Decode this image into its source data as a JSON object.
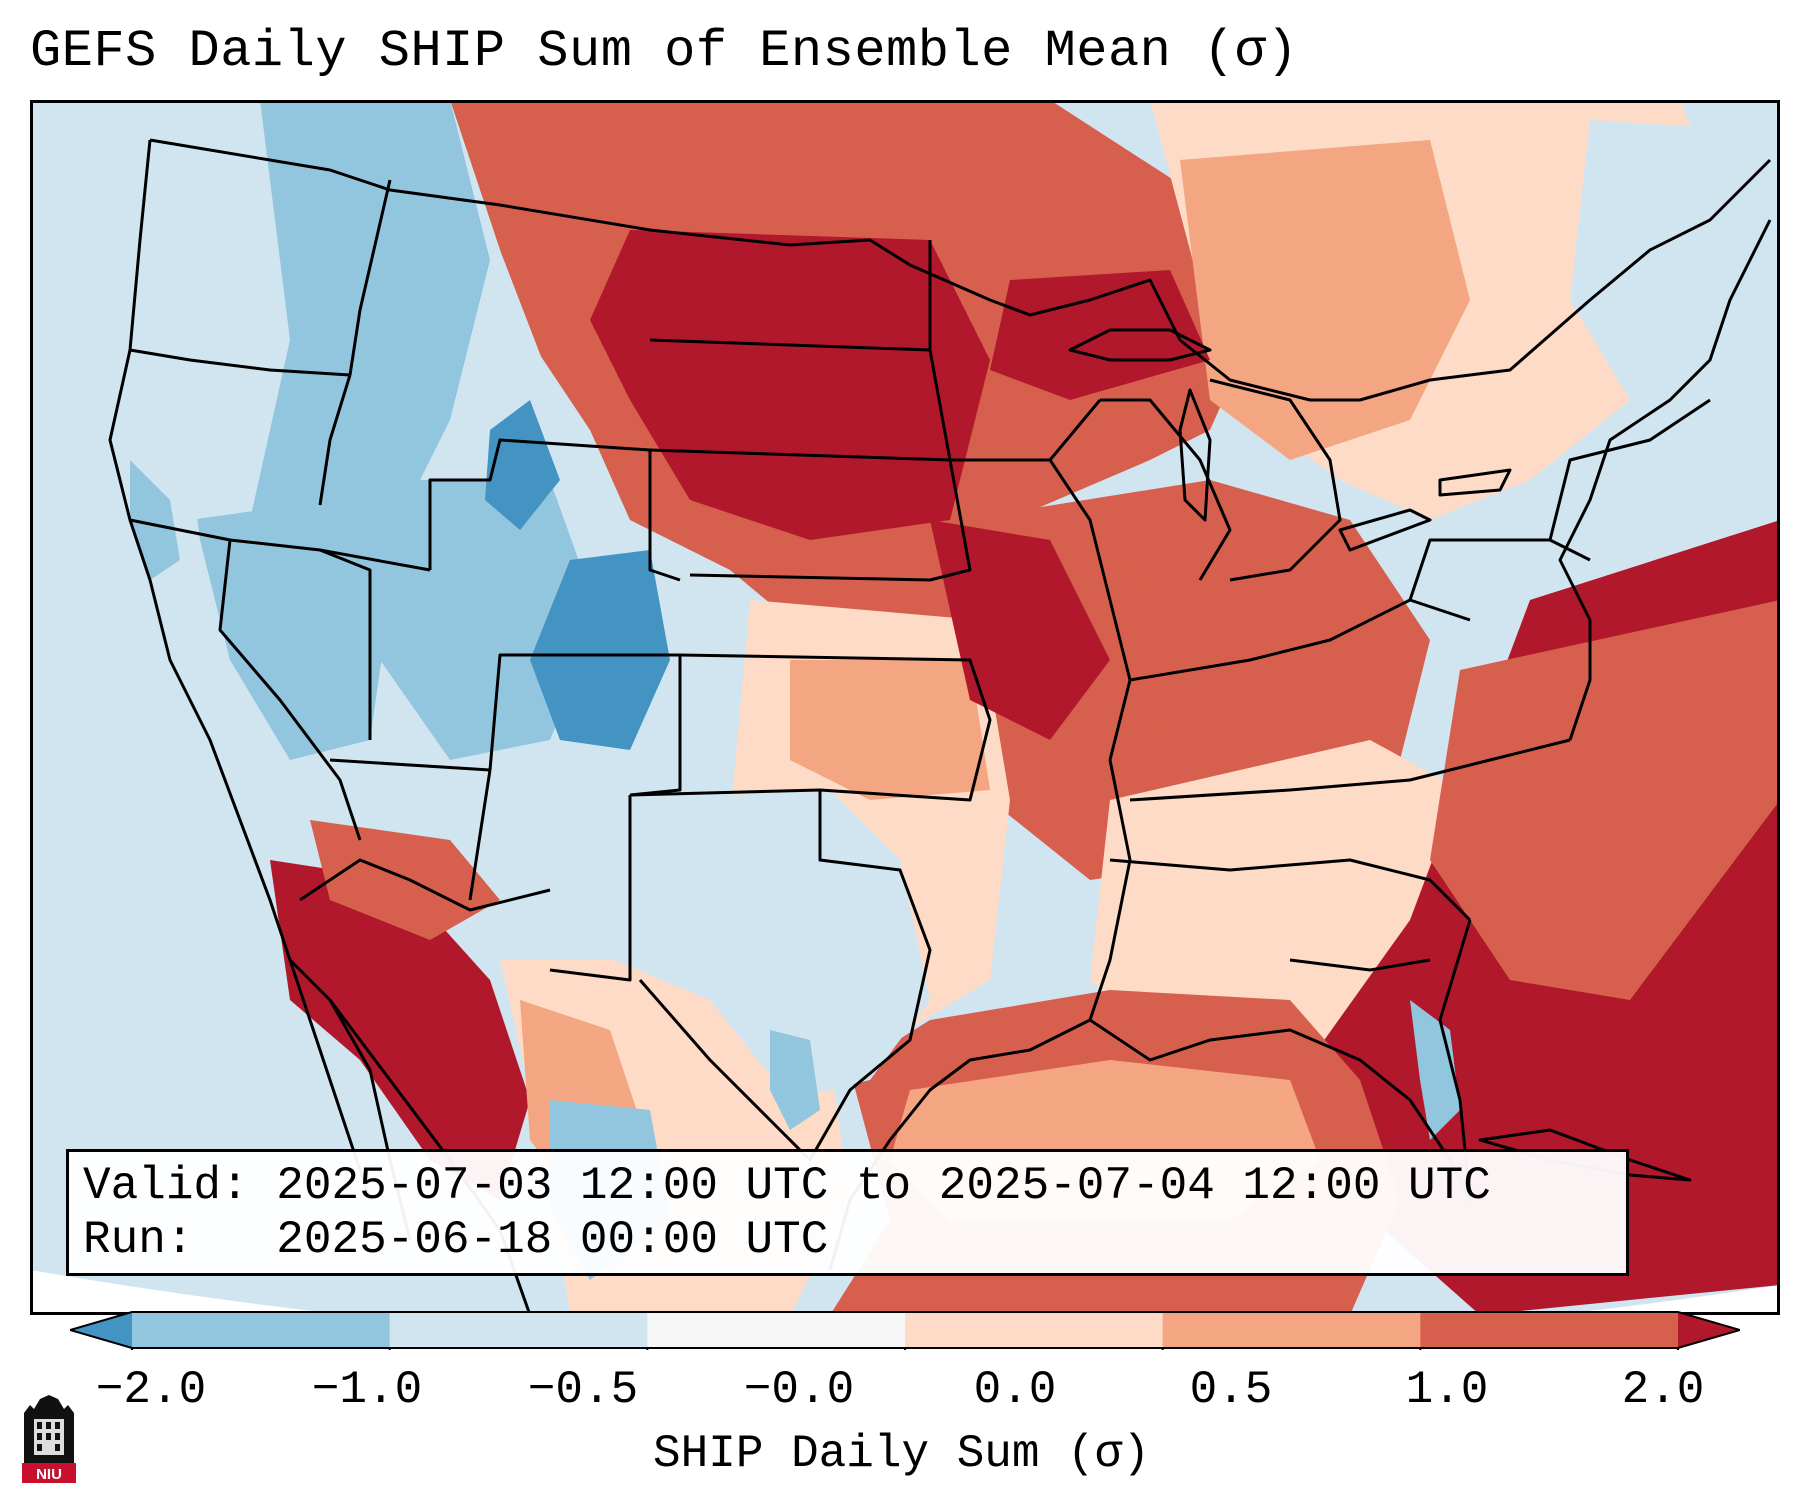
{
  "title": "GEFS Daily SHIP Sum of Ensemble Mean (σ)",
  "info": {
    "valid_label": "Valid:",
    "valid_value": "2025-07-03 12:00 UTC to 2025-07-04 12:00 UTC",
    "run_label": "Run:",
    "run_value": "2025-06-18 00:00 UTC"
  },
  "colorbar": {
    "label": "SHIP Daily Sum (σ)",
    "ticks": [
      "−2.0",
      "−1.0",
      "−0.5",
      "−0.0",
      "0.0",
      "0.5",
      "1.0",
      "2.0"
    ],
    "colors": [
      "#4393c3",
      "#92c5de",
      "#d1e5f0",
      "#f7f7f7",
      "#fddbc7",
      "#f4a582",
      "#d6604d",
      "#b2182b"
    ]
  },
  "map": {
    "region": "Contiguous United States",
    "ocean_color": "#d1e5f0"
  },
  "logo": {
    "text": "NIU"
  }
}
